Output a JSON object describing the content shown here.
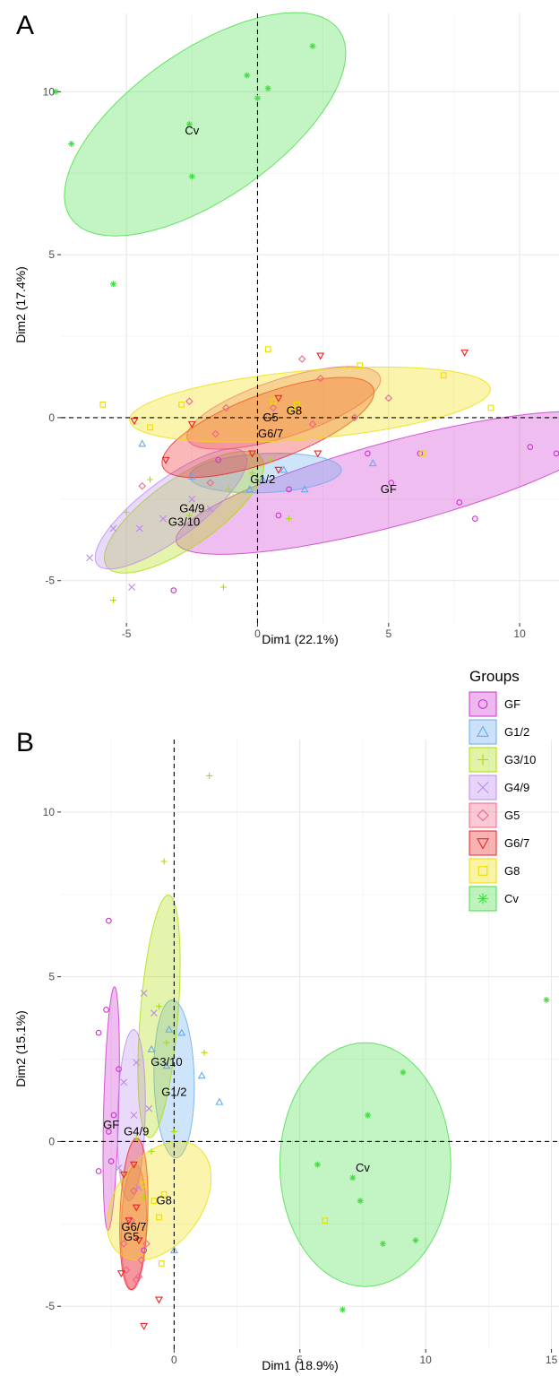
{
  "chart_data": [
    {
      "panel": "A",
      "type": "scatter",
      "xlabel": "Dim1 (22.1%)",
      "ylabel": "Dim2 (17.4%)",
      "xlim": [
        -7.5,
        11.5
      ],
      "ylim": [
        -6.3,
        12.4
      ],
      "xticks": [
        -5,
        0,
        5,
        10
      ],
      "yticks": [
        -5,
        0,
        5,
        10
      ],
      "grid": true,
      "series": [
        {
          "name": "GF",
          "color": "#cc33cc",
          "marker": "circle",
          "points": [
            [
              4.2,
              -1.1
            ],
            [
              5.1,
              -2.0
            ],
            [
              7.7,
              -2.6
            ],
            [
              8.3,
              -3.1
            ],
            [
              10.4,
              -0.9
            ],
            [
              11.4,
              -1.1
            ],
            [
              6.2,
              -1.1
            ],
            [
              1.2,
              -2.2
            ],
            [
              0.8,
              -3.0
            ],
            [
              -3.2,
              -5.3
            ],
            [
              -1.5,
              -1.3
            ]
          ],
          "ellipse": {
            "cx": 5.3,
            "cy": -2.0,
            "rx": 8.6,
            "ry": 1.3,
            "angle": 12
          },
          "label": {
            "x": 5.0,
            "y": -2.2
          }
        },
        {
          "name": "G1/2",
          "color": "#66aaee",
          "marker": "triangle",
          "points": [
            [
              -4.4,
              -0.8
            ],
            [
              0.2,
              -1.9
            ],
            [
              -0.3,
              -2.2
            ],
            [
              1.0,
              -1.6
            ],
            [
              4.4,
              -1.4
            ],
            [
              1.8,
              -2.2
            ],
            [
              -2.5,
              -1.8
            ]
          ],
          "ellipse": {
            "cx": 0.3,
            "cy": -1.7,
            "rx": 2.9,
            "ry": 0.6,
            "angle": 2
          },
          "label": {
            "x": 0.2,
            "y": -1.9
          }
        },
        {
          "name": "G3/10",
          "color": "#aadd00",
          "marker": "plus",
          "points": [
            [
              -5.0,
              -2.9
            ],
            [
              -4.1,
              -1.9
            ],
            [
              -2.6,
              -3.0
            ],
            [
              -1.1,
              -2.2
            ],
            [
              -1.3,
              -5.2
            ],
            [
              -5.5,
              -5.6
            ],
            [
              1.2,
              -3.1
            ],
            [
              -0.2,
              -1.7
            ],
            [
              0.5,
              -1.3
            ]
          ],
          "ellipse": {
            "cx": -2.8,
            "cy": -2.9,
            "rx": 3.4,
            "ry": 1.1,
            "angle": 28
          },
          "label": {
            "x": -2.8,
            "y": -3.2
          }
        },
        {
          "name": "G4/9",
          "color": "#bb88ee",
          "marker": "x",
          "points": [
            [
              -6.4,
              -4.3
            ],
            [
              -4.8,
              -5.2
            ],
            [
              -5.5,
              -3.4
            ],
            [
              -2.5,
              -2.5
            ],
            [
              -1.8,
              -2.8
            ],
            [
              -3.6,
              -3.1
            ],
            [
              -4.5,
              -3.4
            ]
          ],
          "ellipse": {
            "cx": -3.3,
            "cy": -2.8,
            "rx": 3.3,
            "ry": 0.95,
            "angle": 30
          },
          "label": {
            "x": -2.5,
            "y": -2.8
          }
        },
        {
          "name": "G5",
          "color": "#ee6688",
          "marker": "diamond",
          "points": [
            [
              -2.6,
              0.5
            ],
            [
              -1.6,
              -0.5
            ],
            [
              -1.2,
              0.3
            ],
            [
              0.6,
              0.3
            ],
            [
              1.7,
              1.8
            ],
            [
              2.4,
              1.2
            ],
            [
              3.7,
              0.0
            ],
            [
              5.0,
              0.6
            ],
            [
              -1.8,
              -2.0
            ],
            [
              -4.4,
              -2.1
            ],
            [
              2.1,
              -0.2
            ]
          ],
          "ellipse": {
            "cx": 1.0,
            "cy": 0.3,
            "rx": 3.8,
            "ry": 0.9,
            "angle": 14
          },
          "label": {
            "x": 0.5,
            "y": 0.0
          }
        },
        {
          "name": "G6/7",
          "color": "#ee2222",
          "marker": "triangle-down",
          "points": [
            [
              -4.7,
              -0.1
            ],
            [
              -3.5,
              -1.3
            ],
            [
              2.4,
              1.9
            ],
            [
              7.9,
              2.0
            ],
            [
              2.3,
              -1.1
            ],
            [
              0.8,
              -1.6
            ],
            [
              -2.5,
              -0.2
            ],
            [
              -0.2,
              -1.1
            ],
            [
              0.8,
              0.6
            ]
          ],
          "ellipse": {
            "cx": 0.4,
            "cy": -0.3,
            "rx": 4.2,
            "ry": 1.05,
            "angle": 16
          },
          "label": {
            "x": 0.5,
            "y": -0.5
          }
        },
        {
          "name": "G8",
          "color": "#eedd00",
          "marker": "square",
          "points": [
            [
              -5.9,
              0.4
            ],
            [
              -2.9,
              0.4
            ],
            [
              0.4,
              2.1
            ],
            [
              3.9,
              1.6
            ],
            [
              7.1,
              1.3
            ],
            [
              8.9,
              0.3
            ],
            [
              6.3,
              -1.1
            ],
            [
              -4.1,
              -0.3
            ],
            [
              1.5,
              0.4
            ],
            [
              1.3,
              0.2
            ],
            [
              0.6,
              0.5
            ]
          ],
          "ellipse": {
            "cx": 2.0,
            "cy": 0.4,
            "rx": 6.9,
            "ry": 1.05,
            "angle": 4
          },
          "label": {
            "x": 1.4,
            "y": 0.2
          }
        },
        {
          "name": "Cv",
          "color": "#44dd44",
          "marker": "star",
          "points": [
            [
              -7.7,
              10.0
            ],
            [
              -7.1,
              8.4
            ],
            [
              -5.5,
              4.1
            ],
            [
              -2.5,
              7.4
            ],
            [
              -2.6,
              9.0
            ],
            [
              -0.4,
              10.5
            ],
            [
              0.4,
              10.1
            ],
            [
              2.1,
              11.4
            ],
            [
              0.0,
              9.8
            ]
          ],
          "ellipse": {
            "cx": -2.0,
            "cy": 9.0,
            "rx": 5.9,
            "ry": 2.4,
            "angle": 27
          },
          "label": {
            "x": -2.5,
            "y": 8.8
          }
        }
      ]
    },
    {
      "panel": "B",
      "type": "scatter",
      "xlabel": "Dim1 (18.9%)",
      "ylabel": "Dim2 (15.1%)",
      "xlim": [
        -4.5,
        15.3
      ],
      "ylim": [
        -6.3,
        12.2
      ],
      "xticks": [
        0,
        5,
        10,
        15
      ],
      "yticks": [
        -5,
        0,
        5,
        10
      ],
      "grid": true,
      "series": [
        {
          "name": "GF",
          "color": "#cc33cc",
          "marker": "circle",
          "points": [
            [
              -2.6,
              6.7
            ],
            [
              -2.7,
              4.0
            ],
            [
              -3.0,
              3.3
            ],
            [
              -2.4,
              0.8
            ],
            [
              -2.6,
              0.3
            ],
            [
              -2.5,
              -0.6
            ],
            [
              -3.0,
              -0.9
            ],
            [
              -1.2,
              -3.3
            ],
            [
              -2.2,
              2.2
            ]
          ],
          "ellipse": {
            "cx": -2.5,
            "cy": 1.0,
            "rx": 3.7,
            "ry": 0.3,
            "angle": 88
          },
          "label": {
            "x": -2.5,
            "y": 0.5
          }
        },
        {
          "name": "G1/2",
          "color": "#66aaee",
          "marker": "triangle",
          "points": [
            [
              -0.2,
              3.4
            ],
            [
              0.3,
              3.3
            ],
            [
              1.1,
              2.0
            ],
            [
              1.8,
              1.2
            ],
            [
              0.0,
              -3.3
            ],
            [
              -0.9,
              2.8
            ],
            [
              -0.3,
              2.3
            ]
          ],
          "ellipse": {
            "cx": 0.0,
            "cy": 1.9,
            "rx": 2.4,
            "ry": 0.8,
            "angle": 92
          },
          "label": {
            "x": 0.0,
            "y": 1.5
          }
        },
        {
          "name": "G3/10",
          "color": "#aadd00",
          "marker": "plus",
          "points": [
            [
              1.4,
              11.1
            ],
            [
              -0.4,
              8.5
            ],
            [
              1.2,
              2.7
            ],
            [
              -0.3,
              3.0
            ],
            [
              -0.6,
              4.1
            ],
            [
              0.0,
              0.3
            ],
            [
              -0.9,
              -0.3
            ],
            [
              -1.5,
              0.1
            ],
            [
              -1.2,
              -1.7
            ]
          ],
          "ellipse": {
            "cx": -0.6,
            "cy": 3.8,
            "rx": 3.7,
            "ry": 0.75,
            "angle": 84
          },
          "label": {
            "x": -0.3,
            "y": 2.4
          }
        },
        {
          "name": "G4/9",
          "color": "#bb88ee",
          "marker": "x",
          "points": [
            [
              -1.2,
              4.5
            ],
            [
              -0.8,
              3.9
            ],
            [
              -1.5,
              2.4
            ],
            [
              -2.0,
              1.8
            ],
            [
              -1.6,
              0.8
            ],
            [
              -2.2,
              -0.8
            ],
            [
              -1.4,
              -1.4
            ],
            [
              -1.0,
              1.0
            ]
          ],
          "ellipse": {
            "cx": -1.7,
            "cy": 0.8,
            "rx": 2.6,
            "ry": 0.55,
            "angle": 88
          },
          "label": {
            "x": -1.5,
            "y": 0.3
          }
        },
        {
          "name": "G5",
          "color": "#ee6688",
          "marker": "diamond",
          "points": [
            [
              -1.4,
              -4.1
            ],
            [
              -1.5,
              -4.2
            ],
            [
              -1.9,
              -3.9
            ],
            [
              -2.0,
              -3.1
            ],
            [
              -1.3,
              -3.6
            ],
            [
              -1.7,
              -2.4
            ],
            [
              -1.1,
              -3.1
            ],
            [
              -1.6,
              -1.5
            ]
          ],
          "ellipse": {
            "cx": -1.6,
            "cy": -2.6,
            "rx": 1.9,
            "ry": 0.5,
            "angle": 88
          },
          "label": {
            "x": -1.7,
            "y": -2.9
          }
        },
        {
          "name": "G6/7",
          "color": "#ee2222",
          "marker": "triangle-down",
          "points": [
            [
              -2.1,
              -4.0
            ],
            [
              -1.2,
              -5.6
            ],
            [
              -0.6,
              -4.8
            ],
            [
              -1.8,
              -2.4
            ],
            [
              -1.5,
              -2.0
            ],
            [
              -2.0,
              -1.0
            ],
            [
              -1.4,
              -3.0
            ],
            [
              -1.6,
              -0.7
            ]
          ],
          "ellipse": {
            "cx": -1.6,
            "cy": -2.2,
            "rx": 2.3,
            "ry": 0.55,
            "angle": 87
          },
          "label": {
            "x": -1.6,
            "y": -2.6
          }
        },
        {
          "name": "G8",
          "color": "#eedd00",
          "marker": "square",
          "points": [
            [
              -0.5,
              -3.7
            ],
            [
              -0.4,
              -1.6
            ],
            [
              -1.2,
              -1.3
            ],
            [
              -0.6,
              -2.3
            ],
            [
              6.0,
              -2.4
            ],
            [
              -0.8,
              -1.8
            ]
          ],
          "ellipse": {
            "cx": -0.6,
            "cy": -1.8,
            "rx": 2.3,
            "ry": 1.5,
            "angle": 35
          },
          "label": {
            "x": -0.4,
            "y": -1.8
          }
        },
        {
          "name": "Cv",
          "color": "#44dd44",
          "marker": "star",
          "points": [
            [
              14.8,
              4.3
            ],
            [
              9.1,
              2.1
            ],
            [
              7.7,
              0.8
            ],
            [
              5.7,
              -0.7
            ],
            [
              7.1,
              -1.1
            ],
            [
              7.4,
              -1.8
            ],
            [
              8.3,
              -3.1
            ],
            [
              9.6,
              -3.0
            ],
            [
              6.7,
              -5.1
            ]
          ],
          "ellipse": {
            "cx": 7.6,
            "cy": -0.7,
            "rx": 3.4,
            "ry": 3.7,
            "angle": 0
          },
          "label": {
            "x": 7.5,
            "y": -0.8
          }
        }
      ]
    }
  ],
  "panels": {
    "a": "A",
    "b": "B"
  },
  "legend": {
    "title": "Groups",
    "placement": "top-right of panel B"
  }
}
